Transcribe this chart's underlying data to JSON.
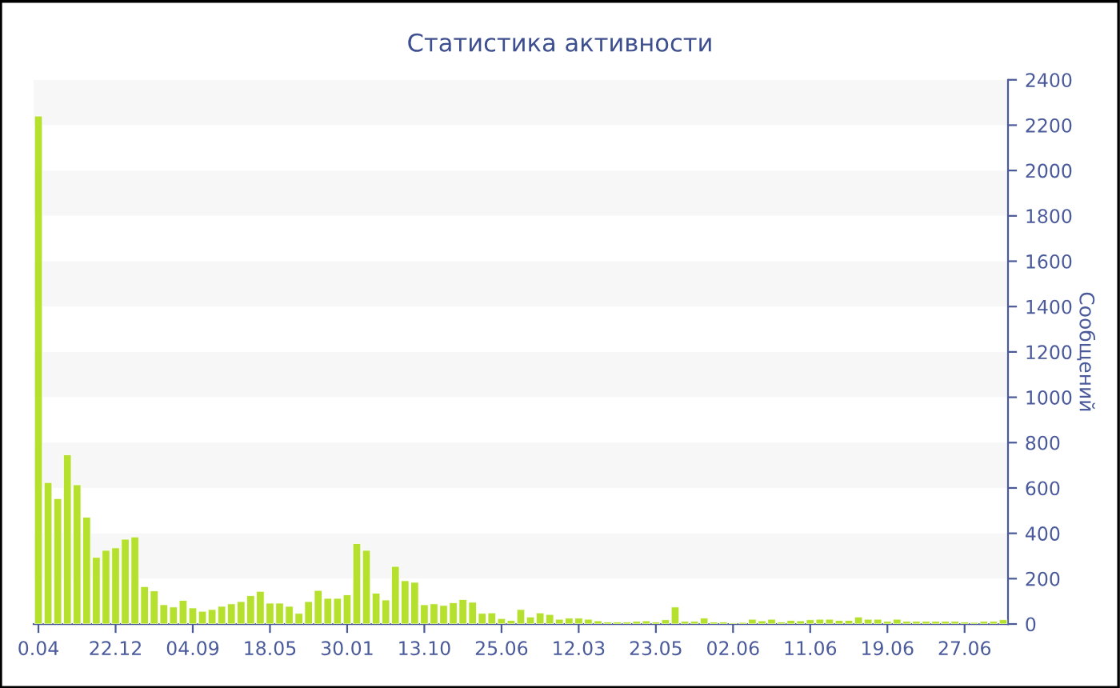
{
  "chart_data": {
    "type": "bar",
    "title": "Статистика активности",
    "y2label": "Сообщений",
    "categories": [
      "0.04",
      null,
      null,
      null,
      null,
      null,
      null,
      null,
      "22.12",
      null,
      null,
      null,
      null,
      null,
      null,
      null,
      "04.09",
      null,
      null,
      null,
      null,
      null,
      null,
      null,
      "18.05",
      null,
      null,
      null,
      null,
      null,
      null,
      null,
      "30.01",
      null,
      null,
      null,
      null,
      null,
      null,
      null,
      "13.10",
      null,
      null,
      null,
      null,
      null,
      null,
      null,
      "25.06",
      null,
      null,
      null,
      null,
      null,
      null,
      null,
      "12.03",
      null,
      null,
      null,
      null,
      null,
      null,
      null,
      "23.05",
      null,
      null,
      null,
      null,
      null,
      null,
      null,
      "02.06",
      null,
      null,
      null,
      null,
      null,
      null,
      null,
      "11.06",
      null,
      null,
      null,
      null,
      null,
      null,
      null,
      "19.06",
      null,
      null,
      null,
      null,
      null,
      null,
      null,
      "27.06",
      null,
      null,
      null,
      null
    ],
    "series": [
      {
        "color": "#b5e02e",
        "axis": "y2",
        "values": [
          2240,
          624,
          553,
          746,
          614,
          471,
          294,
          325,
          336,
          374,
          384,
          165,
          146,
          85,
          75,
          104,
          71,
          56,
          64,
          78,
          89,
          99,
          125,
          144,
          92,
          92,
          78,
          47,
          99,
          148,
          113,
          113,
          129,
          355,
          325,
          136,
          106,
          254,
          191,
          184,
          85,
          89,
          82,
          94,
          108,
          96,
          47,
          49,
          24,
          16,
          64,
          31,
          49,
          42,
          21,
          26,
          26,
          21,
          14,
          9,
          9,
          9,
          12,
          14,
          9,
          19,
          75,
          12,
          12,
          26,
          9,
          9,
          5,
          7,
          21,
          14,
          21,
          9,
          16,
          14,
          19,
          21,
          21,
          16,
          16,
          31,
          21,
          21,
          12,
          21,
          12,
          12,
          12,
          12,
          12,
          12,
          9,
          7,
          12,
          12,
          19
        ]
      }
    ],
    "y2lim": [
      0,
      2400
    ],
    "y2ticks": [
      0,
      200,
      400,
      600,
      800,
      1000,
      1200,
      1400,
      1600,
      1800,
      2000,
      2200,
      2400
    ],
    "bands": [
      {
        "axis": "y2",
        "from": 200,
        "to": 400,
        "color": "#f7f7f7"
      },
      {
        "axis": "y2",
        "from": 600,
        "to": 800,
        "color": "#f7f7f7"
      },
      {
        "axis": "y2",
        "from": 1000,
        "to": 1200,
        "color": "#f7f7f7"
      },
      {
        "axis": "y2",
        "from": 1400,
        "to": 1600,
        "color": "#f7f7f7"
      },
      {
        "axis": "y2",
        "from": 1800,
        "to": 2000,
        "color": "#f7f7f7"
      },
      {
        "axis": "y2",
        "from": 2200,
        "to": 2400,
        "color": "#f7f7f7"
      }
    ]
  }
}
